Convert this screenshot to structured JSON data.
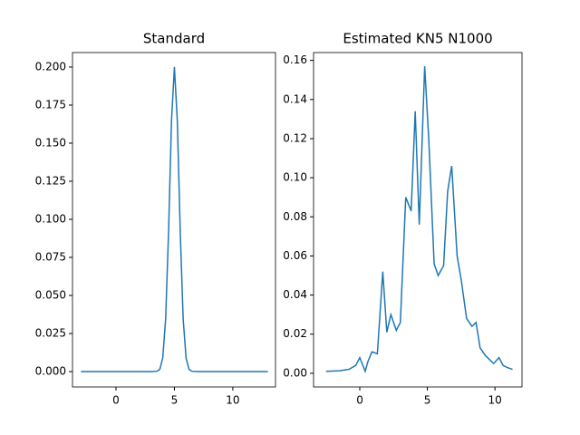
{
  "chart_data": [
    {
      "type": "line",
      "title": "Standard",
      "x": [
        -3,
        -1,
        1,
        3,
        3.5,
        3.75,
        4,
        4.25,
        4.5,
        4.75,
        5,
        5.25,
        5.5,
        5.75,
        6,
        6.25,
        6.5,
        7,
        9,
        11,
        13
      ],
      "series": [
        {
          "color": "#1f77b4",
          "values": [
            0,
            0,
            0,
            0,
            0.0002,
            0.0015,
            0.0088,
            0.0345,
            0.0916,
            0.1645,
            0.2,
            0.1645,
            0.0916,
            0.0345,
            0.0088,
            0.0015,
            0.0002,
            0,
            0,
            0,
            0
          ]
        }
      ],
      "xlim": [
        -3.72,
        13.65
      ],
      "xticks": [
        0,
        5,
        10
      ],
      "ylim": [
        -0.0101,
        0.2095
      ],
      "yticks": [
        {
          "value": 0,
          "label": "0.000"
        },
        {
          "value": 0.025,
          "label": "0.025"
        },
        {
          "value": 0.05,
          "label": "0.050"
        },
        {
          "value": 0.075,
          "label": "0.075"
        },
        {
          "value": 0.1,
          "label": "0.100"
        },
        {
          "value": 0.125,
          "label": "0.125"
        },
        {
          "value": 0.15,
          "label": "0.150"
        },
        {
          "value": 0.175,
          "label": "0.175"
        },
        {
          "value": 0.2,
          "label": "0.200"
        }
      ]
    },
    {
      "type": "line",
      "title": "Estimated KN5 N1000",
      "x": [
        -2.5,
        -1.5,
        -0.8,
        -0.3,
        0,
        0.4,
        0.6,
        0.9,
        1.3,
        1.7,
        2.0,
        2.3,
        2.7,
        3.0,
        3.4,
        3.8,
        4.1,
        4.4,
        4.8,
        5.1,
        5.5,
        5.8,
        6.2,
        6.5,
        6.8,
        7.2,
        7.5,
        7.9,
        8.3,
        8.6,
        8.9,
        9.3,
        9.6,
        9.9,
        10.3,
        10.6,
        10.9,
        11.3
      ],
      "series": [
        {
          "color": "#1f77b4",
          "values": [
            0.001,
            0.0013,
            0.002,
            0.004,
            0.008,
            0.001,
            0.006,
            0.011,
            0.01,
            0.052,
            0.021,
            0.03,
            0.022,
            0.026,
            0.09,
            0.083,
            0.134,
            0.076,
            0.157,
            0.12,
            0.056,
            0.05,
            0.055,
            0.093,
            0.106,
            0.06,
            0.048,
            0.028,
            0.024,
            0.026,
            0.013,
            0.009,
            0.007,
            0.005,
            0.008,
            0.004,
            0.003,
            0.002
          ]
        }
      ],
      "xlim": [
        -3.42,
        12.0
      ],
      "xticks": [
        0,
        5,
        10
      ],
      "ylim": [
        -0.007,
        0.164
      ],
      "yticks": [
        {
          "value": 0,
          "label": "0.00"
        },
        {
          "value": 0.02,
          "label": "0.02"
        },
        {
          "value": 0.04,
          "label": "0.04"
        },
        {
          "value": 0.06,
          "label": "0.06"
        },
        {
          "value": 0.08,
          "label": "0.08"
        },
        {
          "value": 0.1,
          "label": "0.10"
        },
        {
          "value": 0.12,
          "label": "0.12"
        },
        {
          "value": 0.14,
          "label": "0.14"
        },
        {
          "value": 0.16,
          "label": "0.16"
        }
      ]
    }
  ]
}
